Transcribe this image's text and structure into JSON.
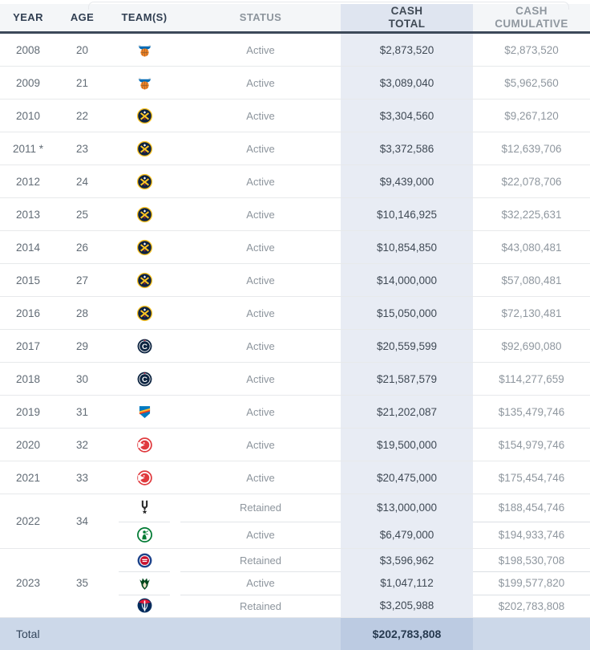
{
  "table": {
    "columns": [
      {
        "key": "year",
        "label": "YEAR"
      },
      {
        "key": "age",
        "label": "AGE"
      },
      {
        "key": "teams",
        "label": "TEAM(S)"
      },
      {
        "key": "status",
        "label": "STATUS"
      },
      {
        "key": "cash_total",
        "label": "CASH",
        "sublabel": "TOTAL"
      },
      {
        "key": "cash_cumulative",
        "label": "CASH",
        "sublabel": "CUMULATIVE"
      }
    ],
    "rows": [
      {
        "year": "2008",
        "age": "20",
        "entries": [
          {
            "team_id": "knicks",
            "team": "New York Knicks",
            "status": "Active",
            "cash_total": "$2,873,520",
            "cash_cumulative": "$2,873,520"
          }
        ]
      },
      {
        "year": "2009",
        "age": "21",
        "entries": [
          {
            "team_id": "knicks",
            "team": "New York Knicks",
            "status": "Active",
            "cash_total": "$3,089,040",
            "cash_cumulative": "$5,962,560"
          }
        ]
      },
      {
        "year": "2010",
        "age": "22",
        "entries": [
          {
            "team_id": "nuggets",
            "team": "Denver Nuggets",
            "status": "Active",
            "cash_total": "$3,304,560",
            "cash_cumulative": "$9,267,120"
          }
        ]
      },
      {
        "year": "2011 *",
        "age": "23",
        "entries": [
          {
            "team_id": "nuggets",
            "team": "Denver Nuggets",
            "status": "Active",
            "cash_total": "$3,372,586",
            "cash_cumulative": "$12,639,706"
          }
        ]
      },
      {
        "year": "2012",
        "age": "24",
        "entries": [
          {
            "team_id": "nuggets",
            "team": "Denver Nuggets",
            "status": "Active",
            "cash_total": "$9,439,000",
            "cash_cumulative": "$22,078,706"
          }
        ]
      },
      {
        "year": "2013",
        "age": "25",
        "entries": [
          {
            "team_id": "nuggets",
            "team": "Denver Nuggets",
            "status": "Active",
            "cash_total": "$10,146,925",
            "cash_cumulative": "$32,225,631"
          }
        ]
      },
      {
        "year": "2014",
        "age": "26",
        "entries": [
          {
            "team_id": "nuggets",
            "team": "Denver Nuggets",
            "status": "Active",
            "cash_total": "$10,854,850",
            "cash_cumulative": "$43,080,481"
          }
        ]
      },
      {
        "year": "2015",
        "age": "27",
        "entries": [
          {
            "team_id": "nuggets",
            "team": "Denver Nuggets",
            "status": "Active",
            "cash_total": "$14,000,000",
            "cash_cumulative": "$57,080,481"
          }
        ]
      },
      {
        "year": "2016",
        "age": "28",
        "entries": [
          {
            "team_id": "nuggets",
            "team": "Denver Nuggets",
            "status": "Active",
            "cash_total": "$15,050,000",
            "cash_cumulative": "$72,130,481"
          }
        ]
      },
      {
        "year": "2017",
        "age": "29",
        "entries": [
          {
            "team_id": "clippers",
            "team": "LA Clippers",
            "status": "Active",
            "cash_total": "$20,559,599",
            "cash_cumulative": "$92,690,080"
          }
        ]
      },
      {
        "year": "2018",
        "age": "30",
        "entries": [
          {
            "team_id": "clippers",
            "team": "LA Clippers",
            "status": "Active",
            "cash_total": "$21,587,579",
            "cash_cumulative": "$114,277,659"
          }
        ]
      },
      {
        "year": "2019",
        "age": "31",
        "entries": [
          {
            "team_id": "thunder",
            "team": "Oklahoma City Thunder",
            "status": "Active",
            "cash_total": "$21,202,087",
            "cash_cumulative": "$135,479,746"
          }
        ]
      },
      {
        "year": "2020",
        "age": "32",
        "entries": [
          {
            "team_id": "hawks",
            "team": "Atlanta Hawks",
            "status": "Active",
            "cash_total": "$19,500,000",
            "cash_cumulative": "$154,979,746"
          }
        ]
      },
      {
        "year": "2021",
        "age": "33",
        "entries": [
          {
            "team_id": "hawks",
            "team": "Atlanta Hawks",
            "status": "Active",
            "cash_total": "$20,475,000",
            "cash_cumulative": "$175,454,746"
          }
        ]
      },
      {
        "year": "2022",
        "age": "34",
        "entries": [
          {
            "team_id": "spurs",
            "team": "San Antonio Spurs",
            "status": "Retained",
            "cash_total": "$13,000,000",
            "cash_cumulative": "$188,454,746"
          },
          {
            "team_id": "celtics",
            "team": "Boston Celtics",
            "status": "Active",
            "cash_total": "$6,479,000",
            "cash_cumulative": "$194,933,746"
          }
        ]
      },
      {
        "year": "2023",
        "age": "35",
        "entries": [
          {
            "team_id": "pistons",
            "team": "Detroit Pistons",
            "status": "Retained",
            "cash_total": "$3,596,962",
            "cash_cumulative": "$198,530,708"
          },
          {
            "team_id": "bucks",
            "team": "Milwaukee Bucks",
            "status": "Active",
            "cash_total": "$1,047,112",
            "cash_cumulative": "$199,577,820"
          },
          {
            "team_id": "wizards",
            "team": "Washington Wizards",
            "status": "Retained",
            "cash_total": "$3,205,988",
            "cash_cumulative": "$202,783,808"
          }
        ]
      }
    ],
    "total": {
      "label": "Total",
      "cash_total": "$202,783,808"
    }
  },
  "colors": {
    "header_bg": "#f4f6f8",
    "header_border": "#3c4959",
    "cash_total_col_bg": "#e8ecf4",
    "cash_total_header_bg": "#dfe5f0",
    "total_row_bg": "#ccd8e9",
    "total_row_cash_bg": "#bccbe2",
    "row_border": "#e7e9eb"
  }
}
